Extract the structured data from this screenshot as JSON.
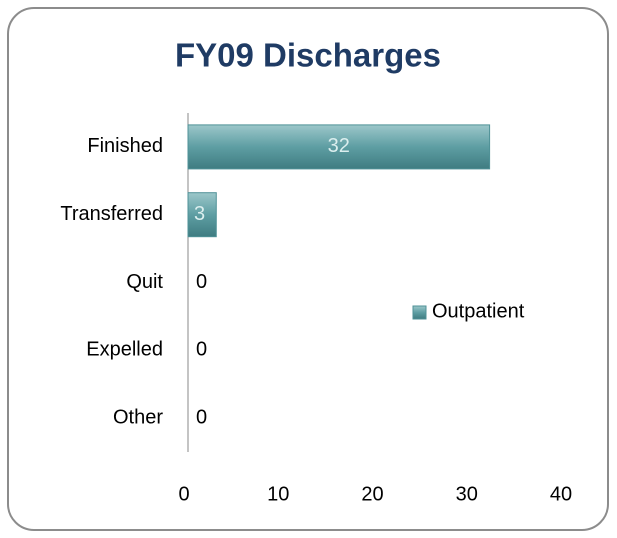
{
  "chart_data": {
    "type": "bar",
    "orientation": "horizontal",
    "title": "FY09 Discharges",
    "categories": [
      "Finished",
      "Transferred",
      "Quit",
      "Expelled",
      "Other"
    ],
    "series": [
      {
        "name": "Outpatient",
        "color": "#4f9197",
        "values": [
          32,
          3,
          0,
          0,
          0
        ]
      }
    ],
    "xlim": [
      0,
      40
    ],
    "xticks": [
      0,
      10,
      20,
      30,
      40
    ],
    "grid": false,
    "legend": "right"
  }
}
